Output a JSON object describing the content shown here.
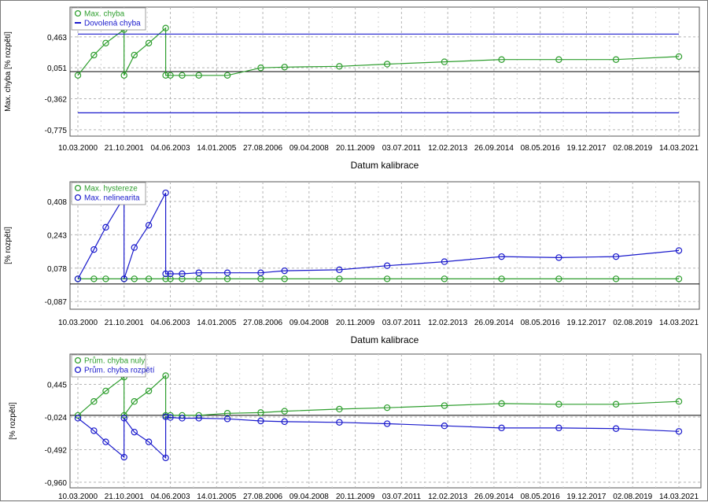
{
  "chart_data": [
    {
      "type": "line",
      "xlabel": "Datum kalibrace",
      "ylabel": "Max. chyba [% rozpětí]",
      "x_ticks": [
        "10.03.2000",
        "21.10.2001",
        "04.06.2003",
        "14.01.2005",
        "27.08.2006",
        "09.04.2008",
        "20.11.2009",
        "03.07.2011",
        "12.02.2013",
        "26.09.2014",
        "08.05.2016",
        "19.12.2017",
        "02.08.2019",
        "14.03.2021"
      ],
      "y_ticks": [
        "0,463",
        "0,051",
        "-0,362",
        "-0,775"
      ],
      "y_tick_values": [
        0.463,
        0.051,
        -0.362,
        -0.775
      ],
      "ylim": [
        -0.86,
        0.86
      ],
      "grid": true,
      "legend": "top-left",
      "series": [
        {
          "name": "Max. chyba",
          "color": "#2e9e2e",
          "x": [
            "2000-03-10",
            "2000-10-01",
            "2001-03-01",
            "2001-10-21",
            "2001-10-21",
            "2002-03-01",
            "2002-09-01",
            "2003-04-05",
            "2003-04-05",
            "2003-06-04",
            "2003-11-01",
            "2004-06-01",
            "2005-06-01",
            "2006-08-01",
            "2007-06-01",
            "2009-05-01",
            "2011-01-01",
            "2013-01-01",
            "2015-01-01",
            "2017-01-01",
            "2019-01-01",
            "2021-03-14"
          ],
          "y": [
            -0.05,
            0.22,
            0.38,
            0.56,
            -0.05,
            0.22,
            0.38,
            0.58,
            -0.05,
            -0.05,
            -0.05,
            -0.05,
            -0.05,
            0.05,
            0.06,
            0.07,
            0.1,
            0.13,
            0.16,
            0.16,
            0.16,
            0.2
          ]
        },
        {
          "name": "Dovolená chyba",
          "color": "#1a1acc",
          "style": "line-only",
          "x": [
            "2000-03-10",
            "2021-03-14"
          ],
          "y": [
            0.5,
            0.5
          ]
        },
        {
          "name": "",
          "color": "#1a1acc",
          "style": "line-only",
          "x": [
            "2000-03-10",
            "2021-03-14"
          ],
          "y": [
            -0.55,
            -0.55
          ]
        }
      ]
    },
    {
      "type": "line",
      "xlabel": "Datum kalibrace",
      "ylabel": "[% rozpětí]",
      "x_ticks": [
        "10.03.2000",
        "21.10.2001",
        "04.06.2003",
        "14.01.2005",
        "27.08.2006",
        "09.04.2008",
        "20.11.2009",
        "03.07.2011",
        "12.02.2013",
        "26.09.2014",
        "08.05.2016",
        "19.12.2017",
        "02.08.2019",
        "14.03.2021"
      ],
      "y_ticks": [
        "0,408",
        "0,243",
        "0,078",
        "-0,087"
      ],
      "y_tick_values": [
        0.408,
        0.243,
        0.078,
        -0.087
      ],
      "ylim": [
        -0.125,
        0.505
      ],
      "grid": true,
      "legend": "top-left",
      "series": [
        {
          "name": "Max. hystereze",
          "color": "#2e9e2e",
          "x": [
            "2000-03-10",
            "2000-10-01",
            "2001-03-01",
            "2001-10-21",
            "2002-03-01",
            "2002-09-01",
            "2003-04-05",
            "2003-06-04",
            "2003-11-01",
            "2004-06-01",
            "2005-06-01",
            "2006-08-01",
            "2007-06-01",
            "2009-05-01",
            "2011-01-01",
            "2013-01-01",
            "2015-01-01",
            "2017-01-01",
            "2019-01-01",
            "2021-03-14"
          ],
          "y": [
            0.025,
            0.025,
            0.025,
            0.025,
            0.025,
            0.025,
            0.025,
            0.025,
            0.025,
            0.025,
            0.025,
            0.025,
            0.025,
            0.025,
            0.025,
            0.025,
            0.025,
            0.025,
            0.025,
            0.025
          ]
        },
        {
          "name": "Max. nelinearita",
          "color": "#1a1acc",
          "x": [
            "2000-03-10",
            "2000-10-01",
            "2001-03-01",
            "2001-10-21",
            "2001-10-21",
            "2002-03-01",
            "2002-09-01",
            "2003-04-05",
            "2003-04-05",
            "2003-06-04",
            "2003-11-01",
            "2004-06-01",
            "2005-06-01",
            "2006-08-01",
            "2007-06-01",
            "2009-05-01",
            "2011-01-01",
            "2013-01-01",
            "2015-01-01",
            "2017-01-01",
            "2019-01-01",
            "2021-03-14"
          ],
          "y": [
            0.025,
            0.17,
            0.28,
            0.43,
            0.025,
            0.18,
            0.29,
            0.45,
            0.05,
            0.05,
            0.05,
            0.055,
            0.055,
            0.055,
            0.065,
            0.07,
            0.09,
            0.11,
            0.135,
            0.13,
            0.135,
            0.165
          ]
        }
      ]
    },
    {
      "type": "line",
      "xlabel": "",
      "ylabel": "[% rozpětí]",
      "x_ticks": [
        "10.03.2000",
        "21.10.2001",
        "04.06.2003",
        "14.01.2005",
        "27.08.2006",
        "09.04.2008",
        "20.11.2009",
        "03.07.2011",
        "12.02.2013",
        "26.09.2014",
        "08.05.2016",
        "19.12.2017",
        "02.08.2019",
        "14.03.2021"
      ],
      "y_ticks": [
        "0,445",
        "-0,024",
        "-0,492",
        "-0,960"
      ],
      "y_tick_values": [
        0.445,
        -0.024,
        -0.492,
        -0.96
      ],
      "ylim": [
        -1.04,
        0.88
      ],
      "grid": true,
      "legend": "top-left",
      "series": [
        {
          "name": "Prům. chyba nuly",
          "color": "#2e9e2e",
          "x": [
            "2000-03-10",
            "2000-10-01",
            "2001-03-01",
            "2001-10-21",
            "2001-10-21",
            "2002-03-01",
            "2002-09-01",
            "2003-04-05",
            "2003-04-05",
            "2003-06-04",
            "2003-11-01",
            "2004-06-01",
            "2005-06-01",
            "2006-08-01",
            "2007-06-01",
            "2009-05-01",
            "2011-01-01",
            "2013-01-01",
            "2015-01-01",
            "2017-01-01",
            "2019-01-01",
            "2021-03-14"
          ],
          "y": [
            0.0,
            0.2,
            0.35,
            0.55,
            0.0,
            0.2,
            0.35,
            0.57,
            0.0,
            0.0,
            0.0,
            0.0,
            0.03,
            0.04,
            0.06,
            0.09,
            0.11,
            0.14,
            0.17,
            0.16,
            0.16,
            0.2
          ]
        },
        {
          "name": "Prům. chyba rozpětí",
          "color": "#1a1acc",
          "x": [
            "2000-03-10",
            "2000-10-01",
            "2001-03-01",
            "2001-10-21",
            "2001-10-21",
            "2002-03-01",
            "2002-09-01",
            "2003-04-05",
            "2003-04-05",
            "2003-06-04",
            "2003-11-01",
            "2004-06-01",
            "2005-06-01",
            "2006-08-01",
            "2007-06-01",
            "2009-05-01",
            "2011-01-01",
            "2013-01-01",
            "2015-01-01",
            "2017-01-01",
            "2019-01-01",
            "2021-03-14"
          ],
          "y": [
            -0.04,
            -0.22,
            -0.38,
            -0.6,
            -0.04,
            -0.24,
            -0.38,
            -0.61,
            -0.02,
            -0.03,
            -0.04,
            -0.04,
            -0.05,
            -0.08,
            -0.09,
            -0.1,
            -0.12,
            -0.15,
            -0.18,
            -0.18,
            -0.19,
            -0.23
          ]
        }
      ]
    }
  ]
}
